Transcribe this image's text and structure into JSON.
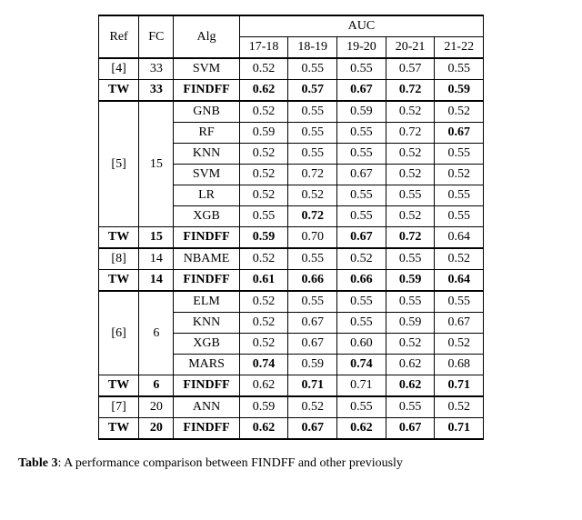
{
  "headers": {
    "ref": "Ref",
    "fc": "FC",
    "alg": "Alg",
    "auc": "AUC",
    "cols": [
      "17-18",
      "18-19",
      "19-20",
      "20-21",
      "21-22"
    ]
  },
  "groups": [
    {
      "ref": "[4]",
      "fc": "33",
      "rows": [
        {
          "alg": "SVM",
          "vals": [
            "0.52",
            "0.55",
            "0.55",
            "0.57",
            "0.55"
          ],
          "boldMask": [
            0,
            0,
            0,
            0,
            0
          ],
          "boldRow": false
        }
      ],
      "tw": {
        "alg": "FINDFF",
        "fc": "33",
        "vals": [
          "0.62",
          "0.57",
          "0.67",
          "0.72",
          "0.59"
        ],
        "boldMask": [
          1,
          1,
          1,
          1,
          1
        ]
      }
    },
    {
      "ref": "[5]",
      "fc": "15",
      "rows": [
        {
          "alg": "GNB",
          "vals": [
            "0.52",
            "0.55",
            "0.59",
            "0.52",
            "0.52"
          ],
          "boldMask": [
            0,
            0,
            0,
            0,
            0
          ]
        },
        {
          "alg": "RF",
          "vals": [
            "0.59",
            "0.55",
            "0.55",
            "0.72",
            "0.67"
          ],
          "boldMask": [
            0,
            0,
            0,
            0,
            1
          ]
        },
        {
          "alg": "KNN",
          "vals": [
            "0.52",
            "0.55",
            "0.55",
            "0.52",
            "0.55"
          ],
          "boldMask": [
            0,
            0,
            0,
            0,
            0
          ]
        },
        {
          "alg": "SVM",
          "vals": [
            "0.52",
            "0.72",
            "0.67",
            "0.52",
            "0.52"
          ],
          "boldMask": [
            0,
            0,
            0,
            0,
            0
          ]
        },
        {
          "alg": "LR",
          "vals": [
            "0.52",
            "0.52",
            "0.55",
            "0.55",
            "0.55"
          ],
          "boldMask": [
            0,
            0,
            0,
            0,
            0
          ]
        },
        {
          "alg": "XGB",
          "vals": [
            "0.55",
            "0.72",
            "0.55",
            "0.52",
            "0.55"
          ],
          "boldMask": [
            0,
            1,
            0,
            0,
            0
          ]
        }
      ],
      "tw": {
        "alg": "FINDFF",
        "fc": "15",
        "vals": [
          "0.59",
          "0.70",
          "0.67",
          "0.72",
          "0.64"
        ],
        "boldMask": [
          1,
          0,
          1,
          1,
          0
        ]
      }
    },
    {
      "ref": "[8]",
      "fc": "14",
      "rows": [
        {
          "alg": "NBAME",
          "vals": [
            "0.52",
            "0.55",
            "0.52",
            "0.55",
            "0.52"
          ],
          "boldMask": [
            0,
            0,
            0,
            0,
            0
          ]
        }
      ],
      "tw": {
        "alg": "FINDFF",
        "fc": "14",
        "vals": [
          "0.61",
          "0.66",
          "0.66",
          "0.59",
          "0.64"
        ],
        "boldMask": [
          1,
          1,
          1,
          1,
          1
        ]
      }
    },
    {
      "ref": "[6]",
      "fc": "6",
      "rows": [
        {
          "alg": "ELM",
          "vals": [
            "0.52",
            "0.55",
            "0.55",
            "0.55",
            "0.55"
          ],
          "boldMask": [
            0,
            0,
            0,
            0,
            0
          ]
        },
        {
          "alg": "KNN",
          "vals": [
            "0.52",
            "0.67",
            "0.55",
            "0.59",
            "0.67"
          ],
          "boldMask": [
            0,
            0,
            0,
            0,
            0
          ]
        },
        {
          "alg": "XGB",
          "vals": [
            "0.52",
            "0.67",
            "0.60",
            "0.52",
            "0.52"
          ],
          "boldMask": [
            0,
            0,
            0,
            0,
            0
          ]
        },
        {
          "alg": "MARS",
          "vals": [
            "0.74",
            "0.59",
            "0.74",
            "0.62",
            "0.68"
          ],
          "boldMask": [
            1,
            0,
            1,
            0,
            0
          ]
        }
      ],
      "tw": {
        "alg": "FINDFF",
        "fc": "6",
        "vals": [
          "0.62",
          "0.71",
          "0.71",
          "0.62",
          "0.71"
        ],
        "boldMask": [
          0,
          1,
          0,
          1,
          1
        ]
      }
    },
    {
      "ref": "[7]",
      "fc": "20",
      "rows": [
        {
          "alg": "ANN",
          "vals": [
            "0.59",
            "0.52",
            "0.55",
            "0.55",
            "0.52"
          ],
          "boldMask": [
            0,
            0,
            0,
            0,
            0
          ]
        }
      ],
      "tw": {
        "alg": "FINDFF",
        "fc": "20",
        "vals": [
          "0.62",
          "0.67",
          "0.62",
          "0.67",
          "0.71"
        ],
        "boldMask": [
          1,
          1,
          1,
          1,
          1
        ]
      }
    }
  ],
  "twLabel": "TW",
  "caption": "Table 3: A performance comparison between FINDFF and other previously"
}
